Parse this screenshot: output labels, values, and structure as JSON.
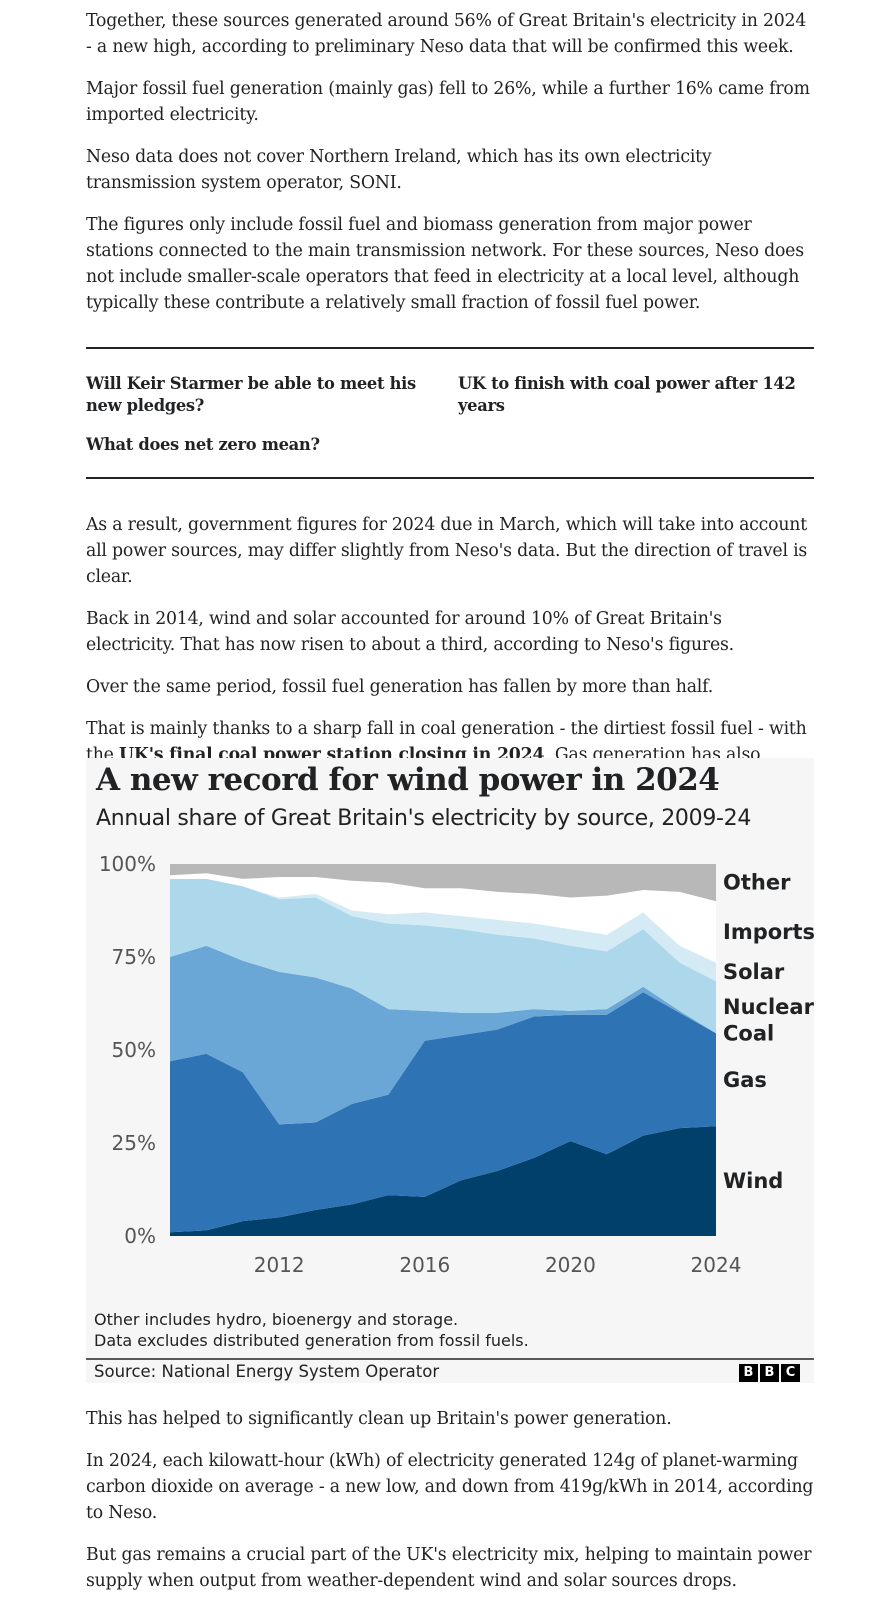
{
  "article": {
    "paragraphs_top": [
      "Together, these sources generated around 56% of Great Britain's electricity in 2024 - a new high, according to preliminary Neso data that will be confirmed this week.",
      "Major fossil fuel generation (mainly gas) fell to 26%, while a further 16% came from imported electricity.",
      "Neso data does not cover Northern Ireland, which has its own electricity transmission system operator, SONI.",
      "The figures only include fossil fuel and biomass generation from major power stations connected to the main transmission network. For these sources, Neso does not include smaller-scale operators that feed in electricity at a local level, although typically these contribute a relatively small fraction of fossil fuel power."
    ],
    "related_links": [
      "Will Keir Starmer be able to meet his new pledges?",
      "UK to finish with coal power after 142 years",
      "What does net zero mean?"
    ],
    "paragraphs_middle": [
      "As a result, government figures for 2024 due in March, which will take into account all power sources, may differ slightly from Neso's data. But the direction of travel is clear.",
      "Back in 2014, wind and solar accounted for around 10% of Great Britain's electricity. That has now risen to about a third, according to Neso's figures.",
      "Over the same period, fossil fuel generation has fallen by more than half."
    ],
    "coal_para_before": "That is mainly thanks to a sharp fall in coal generation - the dirtiest fossil fuel - with the ",
    "coal_link": "UK's final coal power station closing in 2024",
    "coal_para_after": ". Gas generation has also begun to decline.",
    "paragraphs_bottom": [
      "This has helped to significantly clean up Britain's power generation.",
      "In 2024, each kilowatt-hour (kWh) of electricity generated 124g of planet-warming carbon dioxide on average - a new low, and down from 419g/kWh in 2014, according to Neso.",
      "But gas remains a crucial part of the UK's electricity mix, helping to maintain power supply when output from weather-dependent wind and solar sources drops."
    ]
  },
  "chart_data": {
    "type": "area",
    "stacked": true,
    "title": "A new record for wind power in 2024",
    "subtitle": "Annual share of Great Britain's electricity by source, 2009-24",
    "x": [
      2009,
      2010,
      2011,
      2012,
      2013,
      2014,
      2015,
      2016,
      2017,
      2018,
      2019,
      2020,
      2021,
      2022,
      2023,
      2024
    ],
    "xticks": [
      "2012",
      "2016",
      "2020",
      "2024"
    ],
    "yticks": [
      "0%",
      "25%",
      "50%",
      "75%",
      "100%"
    ],
    "ylim": [
      0,
      100
    ],
    "series": [
      {
        "name": "Wind",
        "color": "#00406a",
        "values": [
          1,
          1.5,
          4,
          5,
          7,
          8.5,
          11,
          10.5,
          15,
          17.5,
          21,
          25.5,
          22,
          27,
          29,
          29.5
        ]
      },
      {
        "name": "Gas",
        "color": "#2e74b5",
        "values": [
          46,
          47.5,
          40,
          25,
          23.5,
          27,
          27,
          42,
          39,
          38,
          38,
          34,
          37.5,
          38.5,
          31,
          25
        ]
      },
      {
        "name": "Coal",
        "color": "#6aa7d6",
        "values": [
          28,
          29,
          30,
          41,
          39,
          31,
          23,
          8,
          6,
          4.5,
          2,
          1,
          1.5,
          1.5,
          0.5,
          0
        ]
      },
      {
        "name": "Nuclear",
        "color": "#add8ec",
        "values": [
          21,
          18,
          20,
          19.5,
          21.5,
          19.5,
          23,
          23,
          22.5,
          21,
          19,
          17.5,
          15.5,
          15.5,
          13,
          14
        ]
      },
      {
        "name": "Solar",
        "color": "#d4ebf6",
        "values": [
          0,
          0,
          0,
          0.5,
          1,
          1.5,
          2.5,
          3.5,
          3.5,
          4,
          4,
          4.5,
          4.5,
          4.5,
          4.5,
          5
        ]
      },
      {
        "name": "Imports",
        "color": "#ffffff",
        "values": [
          1,
          1.5,
          2,
          5.5,
          4.5,
          8,
          8.5,
          6.5,
          7.5,
          7.5,
          8,
          8.5,
          10.5,
          6,
          14.5,
          16.5
        ]
      },
      {
        "name": "Other",
        "color": "#b8b8b8",
        "values": [
          3,
          2.5,
          4,
          3.5,
          3.5,
          4.5,
          5,
          6.5,
          6.5,
          7.5,
          8,
          9,
          8.5,
          7,
          7.5,
          10
        ]
      }
    ],
    "legend_placement": "right, labels at series end",
    "grid": false,
    "notes": [
      "Other includes hydro, bioenergy and storage.",
      "Data excludes distributed generation from fossil fuels."
    ],
    "source": "Source: National Energy System Operator",
    "logo": [
      "B",
      "B",
      "C"
    ]
  }
}
